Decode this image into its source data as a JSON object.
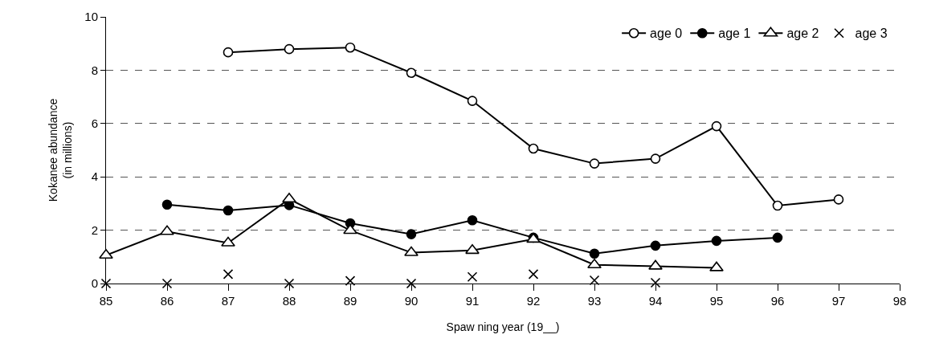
{
  "chart_data": {
    "type": "line",
    "xlabel": "Spaw ning year (19__)",
    "ylabel": "Kokanee abundance\n(in millions)",
    "x": [
      85,
      86,
      87,
      88,
      89,
      90,
      91,
      92,
      93,
      94,
      95,
      96,
      97
    ],
    "series": [
      {
        "name": "age 0",
        "color": "#000000",
        "marker": "circle",
        "values": [
          null,
          null,
          8.67,
          8.79,
          8.85,
          7.9,
          6.85,
          5.06,
          4.5,
          4.68,
          5.9,
          2.92,
          3.15
        ]
      },
      {
        "name": "age 1",
        "color": "#000000",
        "marker": "circle",
        "values": [
          null,
          2.96,
          2.74,
          2.94,
          2.26,
          1.85,
          2.37,
          1.72,
          1.12,
          1.42,
          1.6,
          1.72,
          null
        ]
      },
      {
        "name": "age 2",
        "color": "#000000",
        "marker": "triangle",
        "values": [
          1.06,
          1.95,
          1.52,
          3.17,
          1.99,
          1.16,
          1.24,
          1.66,
          0.7,
          0.65,
          0.59,
          null,
          null
        ]
      },
      {
        "name": "age 3",
        "type": "scatter",
        "color": "#000000",
        "marker": "cross",
        "values": [
          0,
          0,
          0.35,
          0,
          0.1,
          0,
          0.25,
          0.35,
          0.12,
          0.03,
          null,
          null,
          null
        ]
      }
    ],
    "xlim": [
      85,
      98
    ],
    "xticks": [
      85,
      86,
      87,
      88,
      89,
      90,
      91,
      92,
      93,
      94,
      95,
      96,
      97,
      98
    ],
    "ylim": [
      0,
      10
    ],
    "yticks": [
      0,
      2,
      4,
      6,
      8,
      10
    ],
    "grid": "y",
    "legend": "top right",
    "line_style": "solid"
  }
}
